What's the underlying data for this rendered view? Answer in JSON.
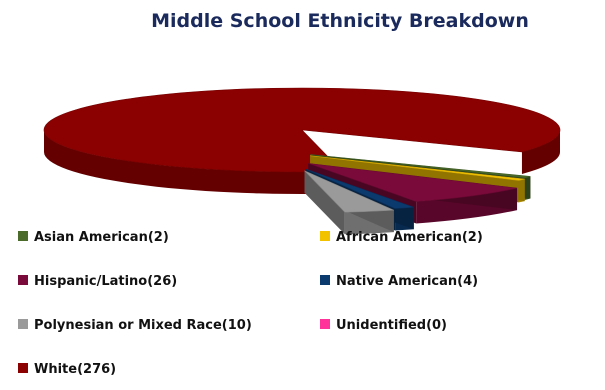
{
  "chart_data": {
    "type": "pie",
    "title": "Middle School Ethnicity Breakdown",
    "style": "3d-exploded",
    "legend_position": "bottom",
    "slices": [
      {
        "name": "Asian American",
        "label": "Asian American(2)",
        "value": 2,
        "color": "#4a6b2a"
      },
      {
        "name": "African American",
        "label": "African American(2)",
        "value": 2,
        "color": "#f2c100"
      },
      {
        "name": "Hispanic/Latino",
        "label": "Hispanic/Latino(26)",
        "value": 26,
        "color": "#7a0a3a"
      },
      {
        "name": "Native American",
        "label": "Native American(4)",
        "value": 4,
        "color": "#0b3a6e"
      },
      {
        "name": "Polynesian or Mixed Race",
        "label": "Polynesian or Mixed Race(10)",
        "value": 10,
        "color": "#9a9a9a"
      },
      {
        "name": "Unidentified",
        "label": "Unidentified(0)",
        "value": 0,
        "color": "#ff3399"
      },
      {
        "name": "White",
        "label": "White(276)",
        "value": 276,
        "color": "#8b0000"
      }
    ]
  }
}
